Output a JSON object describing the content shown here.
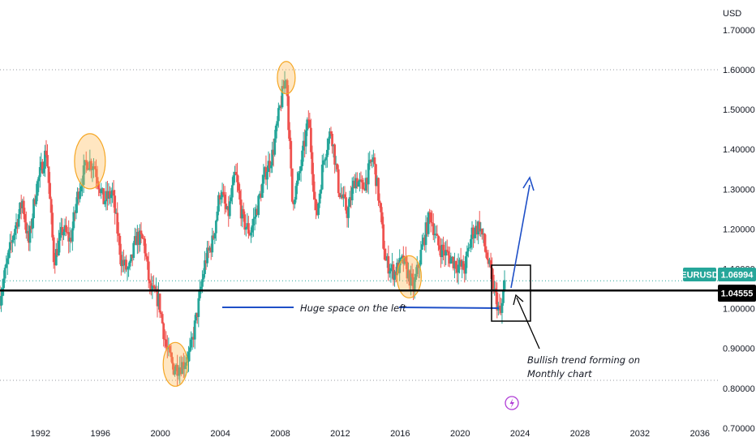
{
  "chart_data": {
    "type": "candlestick",
    "currency_label": "USD",
    "symbol": "EURUSD",
    "y_ticks": [
      "1.70000",
      "1.60000",
      "1.50000",
      "1.40000",
      "1.30000",
      "1.20000",
      "1.10000",
      "1.00000",
      "0.90000",
      "0.80000",
      "0.70000"
    ],
    "y_tick_values": [
      1.7,
      1.6,
      1.5,
      1.4,
      1.3,
      1.2,
      1.1,
      1.0,
      0.9,
      0.8,
      0.7
    ],
    "x_ticks": [
      "1992",
      "1996",
      "2000",
      "2004",
      "2008",
      "2012",
      "2016",
      "2020",
      "2024",
      "2028",
      "2032",
      "2036"
    ],
    "x_tick_values": [
      1992,
      1996,
      2000,
      2004,
      2008,
      2012,
      2016,
      2020,
      2024,
      2028,
      2032,
      2036
    ],
    "ylim": [
      0.655,
      1.775
    ],
    "xlim": [
      1989.3,
      2037.2
    ],
    "last_price": "1.06994",
    "support_price": "1.04555",
    "support_level": 1.04555,
    "up_color": "#26a69a",
    "down_color": "#ef5350",
    "price_path": [
      [
        1989.3,
        1.03
      ],
      [
        1989.7,
        1.1
      ],
      [
        1990.2,
        1.19
      ],
      [
        1990.8,
        1.27
      ],
      [
        1991.2,
        1.16
      ],
      [
        1991.7,
        1.3
      ],
      [
        1992.4,
        1.4
      ],
      [
        1992.9,
        1.12
      ],
      [
        1993.5,
        1.2
      ],
      [
        1994.0,
        1.17
      ],
      [
        1994.5,
        1.29
      ],
      [
        1995.1,
        1.37
      ],
      [
        1995.6,
        1.36
      ],
      [
        1996.2,
        1.27
      ],
      [
        1996.8,
        1.29
      ],
      [
        1997.4,
        1.12
      ],
      [
        1997.9,
        1.09
      ],
      [
        1998.4,
        1.18
      ],
      [
        1998.9,
        1.17
      ],
      [
        1999.3,
        1.05
      ],
      [
        1999.9,
        1.02
      ],
      [
        2000.4,
        0.9
      ],
      [
        2000.9,
        0.85
      ],
      [
        2001.5,
        0.86
      ],
      [
        2002.0,
        0.89
      ],
      [
        2002.5,
        1.0
      ],
      [
        2003.0,
        1.12
      ],
      [
        2003.5,
        1.17
      ],
      [
        2004.0,
        1.3
      ],
      [
        2004.5,
        1.23
      ],
      [
        2005.0,
        1.34
      ],
      [
        2005.5,
        1.22
      ],
      [
        2006.0,
        1.19
      ],
      [
        2006.5,
        1.26
      ],
      [
        2007.0,
        1.34
      ],
      [
        2007.5,
        1.39
      ],
      [
        2008.0,
        1.51
      ],
      [
        2008.4,
        1.59
      ],
      [
        2008.8,
        1.27
      ],
      [
        2009.2,
        1.32
      ],
      [
        2009.9,
        1.48
      ],
      [
        2010.4,
        1.22
      ],
      [
        2010.9,
        1.38
      ],
      [
        2011.4,
        1.45
      ],
      [
        2011.9,
        1.3
      ],
      [
        2012.5,
        1.24
      ],
      [
        2013.0,
        1.33
      ],
      [
        2013.5,
        1.3
      ],
      [
        2014.2,
        1.38
      ],
      [
        2014.6,
        1.27
      ],
      [
        2015.0,
        1.12
      ],
      [
        2015.6,
        1.09
      ],
      [
        2016.2,
        1.12
      ],
      [
        2016.9,
        1.05
      ],
      [
        2017.5,
        1.16
      ],
      [
        2018.0,
        1.24
      ],
      [
        2018.5,
        1.16
      ],
      [
        2019.0,
        1.14
      ],
      [
        2019.8,
        1.11
      ],
      [
        2020.3,
        1.1
      ],
      [
        2020.8,
        1.19
      ],
      [
        2021.3,
        1.21
      ],
      [
        2021.8,
        1.13
      ],
      [
        2022.3,
        1.04
      ],
      [
        2022.7,
        0.98
      ],
      [
        2023.0,
        1.07
      ]
    ],
    "highlighted_points": [
      [
        1995.3,
        1.37
      ],
      [
        2008.4,
        1.58
      ],
      [
        2001.0,
        0.86
      ],
      [
        2016.6,
        1.08
      ]
    ],
    "annotations": {
      "huge_space": "Huge space on the left",
      "bullish_line1": "Bullish trend forming on",
      "bullish_line2": "Monthly chart"
    },
    "gridline_dotted": [
      1.6,
      0.82
    ],
    "grid": false
  }
}
